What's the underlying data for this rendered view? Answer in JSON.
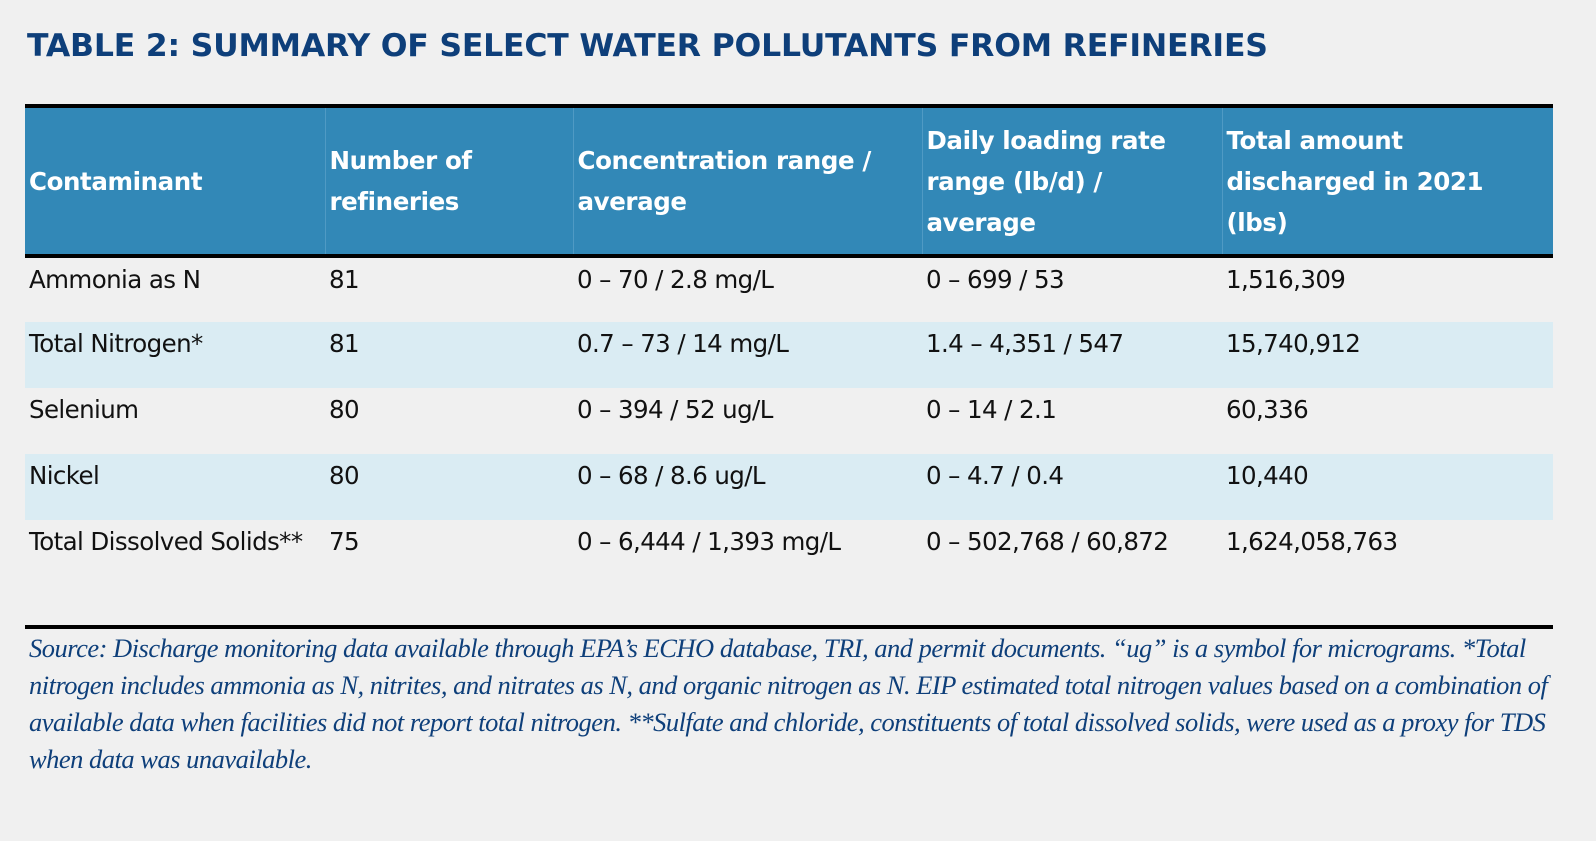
{
  "title": "TABLE 2: SUMMARY OF SELECT WATER POLLUTANTS FROM REFINERIES",
  "colors": {
    "title": "#0e3f7a",
    "header_bg": "#3288b7",
    "shaded_row": "#daecf3",
    "source_text": "#0e3f7a"
  },
  "table": {
    "headers": [
      "Contaminant",
      "Number of refineries",
      "Concentration range / average",
      "Daily loading rate range (lb/d) / average",
      "Total amount discharged in 2021 (lbs)"
    ],
    "rows": [
      {
        "contaminant": "Ammonia as N",
        "refineries": "81",
        "concentration": "0 – 70 / 2.8 mg/L",
        "daily_loading": "0 – 699 / 53",
        "total_2021": "1,516,309"
      },
      {
        "contaminant": "Total Nitrogen*",
        "refineries": "81",
        "concentration": "0.7 – 73 / 14 mg/L",
        "daily_loading": "1.4 – 4,351 / 547",
        "total_2021": "15,740,912"
      },
      {
        "contaminant": "Selenium",
        "refineries": "80",
        "concentration": "0 – 394 / 52 ug/L",
        "daily_loading": "0 – 14 / 2.1",
        "total_2021": "60,336"
      },
      {
        "contaminant": "Nickel",
        "refineries": "80",
        "concentration": "0 – 68 / 8.6 ug/L",
        "daily_loading": "0 – 4.7 / 0.4",
        "total_2021": "10,440"
      },
      {
        "contaminant": "Total Dissolved Solids**",
        "refineries": "75",
        "concentration": "0 – 6,444 / 1,393 mg/L",
        "daily_loading": "0 – 502,768 / 60,872",
        "total_2021": "1,624,058,763"
      }
    ]
  },
  "source_note": "Source: Discharge monitoring data available through EPA’s ECHO database, TRI, and permit documents. “ug” is a symbol for micrograms. *Total nitrogen includes ammonia as N, nitrites, and nitrates as N, and organic nitrogen as N. EIP estimated total nitrogen values based on a combination of available data when facilities did not report total nitrogen. **Sulfate and chloride, constituents of total dissolved solids, were used as a proxy for TDS when data was unavailable."
}
